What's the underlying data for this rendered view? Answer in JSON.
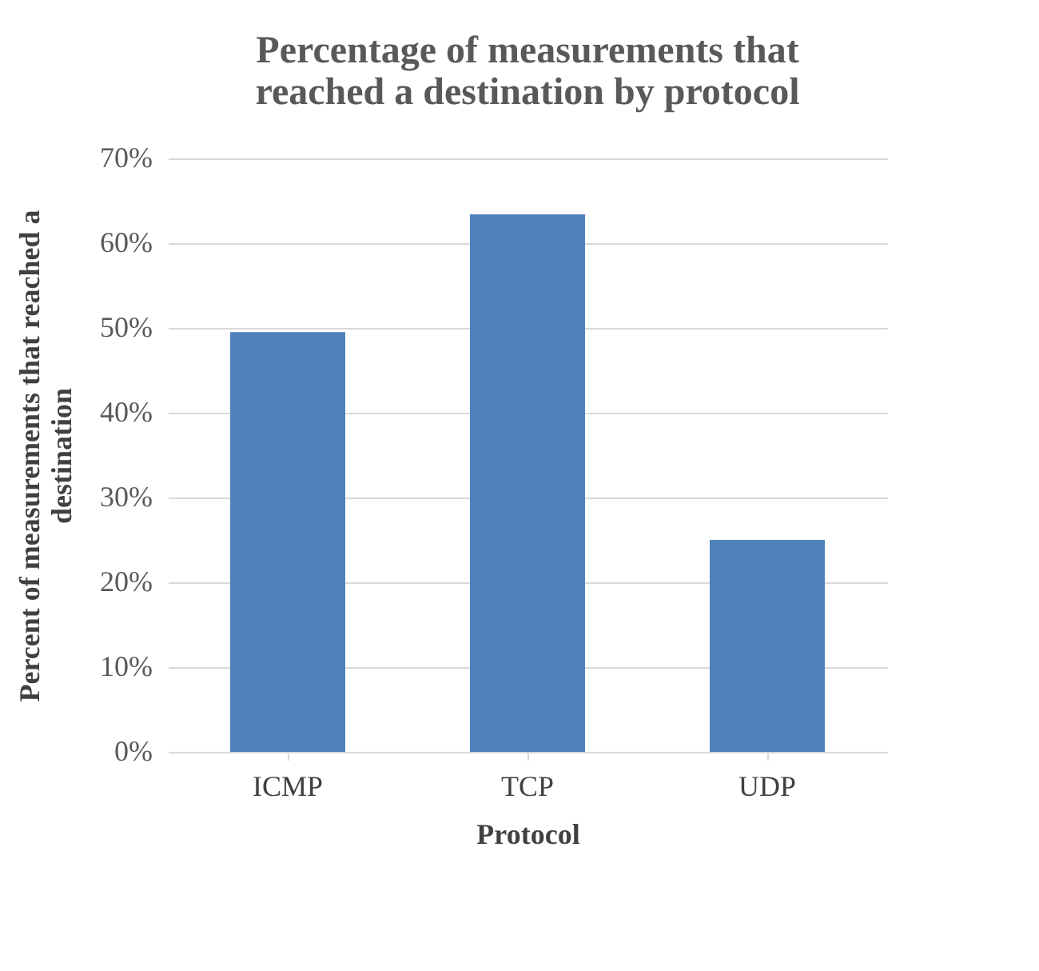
{
  "chart_data": {
    "type": "bar",
    "title": "Percentage of measurements that reached a destination by protocol",
    "xlabel": "Protocol",
    "ylabel": "Percent of measurements that reached a destination",
    "categories": [
      "ICMP",
      "TCP",
      "UDP"
    ],
    "values": [
      49.5,
      63.4,
      25.0
    ],
    "color": "#4f81bd",
    "ylim": [
      0,
      70
    ],
    "yticks": [
      {
        "value": 0,
        "label": "0%"
      },
      {
        "value": 10,
        "label": "10%"
      },
      {
        "value": 20,
        "label": "20%"
      },
      {
        "value": 30,
        "label": "30%"
      },
      {
        "value": 40,
        "label": "40%"
      },
      {
        "value": 50,
        "label": "50%"
      },
      {
        "value": 60,
        "label": "60%"
      },
      {
        "value": 70,
        "label": "70%"
      }
    ],
    "grid": "y"
  }
}
